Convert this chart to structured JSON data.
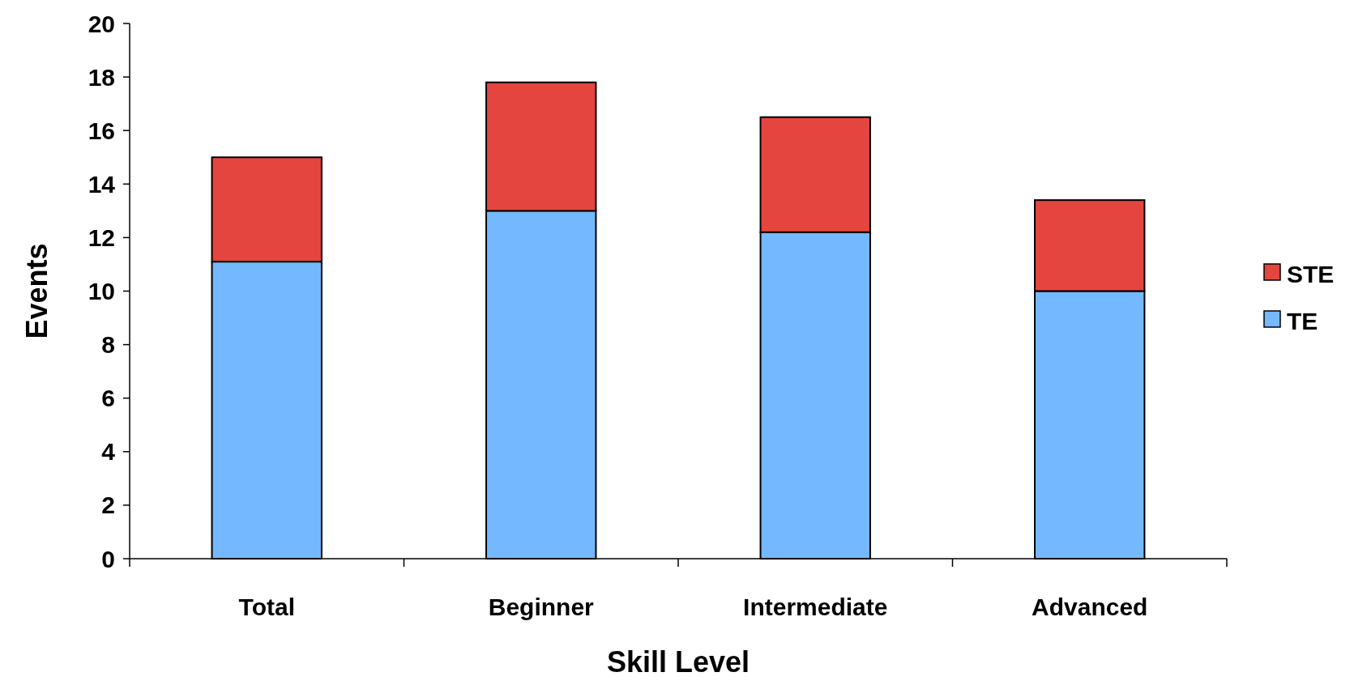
{
  "chart_data": {
    "type": "bar",
    "stacked": true,
    "xlabel": "Skill Level",
    "ylabel": "Events",
    "categories": [
      "Total",
      "Beginner",
      "Intermediate",
      "Advanced"
    ],
    "series": [
      {
        "name": "TE",
        "color": "#74b9ff",
        "values": [
          11.1,
          13.0,
          12.2,
          10.0
        ]
      },
      {
        "name": "STE",
        "color": "#e5453f",
        "values": [
          3.9,
          4.8,
          4.3,
          3.4
        ]
      }
    ],
    "ylim": [
      0,
      20
    ],
    "yticks": [
      0,
      2,
      4,
      6,
      8,
      10,
      12,
      14,
      16,
      18,
      20
    ],
    "grid": false,
    "legend": "right"
  }
}
